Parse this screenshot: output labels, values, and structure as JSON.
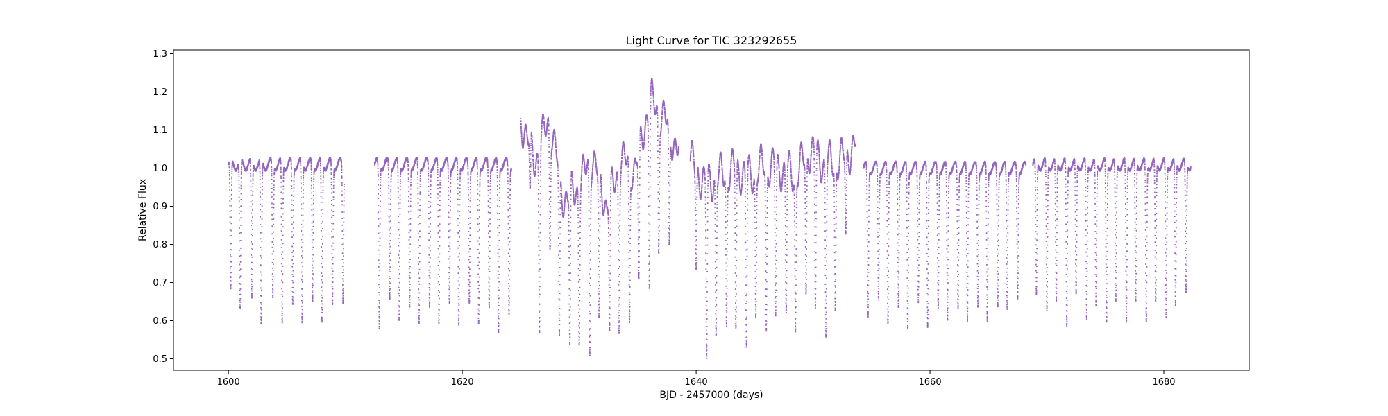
{
  "chart_data": {
    "type": "scatter",
    "title": "Light Curve for TIC 323292655",
    "xlabel": "BJD - 2457000 (days)",
    "ylabel": "Relative Flux",
    "xlim": [
      1595.3,
      1687.3
    ],
    "ylim": [
      0.47,
      1.31
    ],
    "xticks": [
      1600,
      1620,
      1640,
      1660,
      1680
    ],
    "yticks": [
      0.5,
      0.6,
      0.7,
      0.8,
      0.9,
      1.0,
      1.1,
      1.2,
      1.3
    ],
    "xtick_labels": [
      "1600",
      "1620",
      "1640",
      "1660",
      "1680"
    ],
    "ytick_labels": [
      "0.5",
      "0.6",
      "0.7",
      "0.8",
      "0.9",
      "1.0",
      "1.1",
      "1.2",
      "1.3"
    ],
    "grid": false,
    "marker_color": "#9467bd",
    "segments": [
      {
        "t_start": 1600.0,
        "t_end": 1609.9,
        "eclipse_times": [
          1600.2,
          1601.0,
          1602.0,
          1602.8,
          1603.8,
          1604.6,
          1605.5,
          1606.3,
          1607.2,
          1608.0,
          1608.9,
          1609.8
        ],
        "eclipse_minima": [
          0.67,
          0.62,
          0.65,
          0.58,
          0.66,
          0.59,
          0.64,
          0.59,
          0.65,
          0.59,
          0.64,
          0.65
        ],
        "baseline": 1.01,
        "active": false
      },
      {
        "t_start": 1612.5,
        "t_end": 1624.2,
        "eclipse_times": [
          1612.9,
          1613.8,
          1614.6,
          1615.5,
          1616.3,
          1617.2,
          1618.0,
          1618.9,
          1619.7,
          1620.6,
          1621.4,
          1622.3,
          1623.1,
          1624.0
        ],
        "eclipse_minima": [
          0.58,
          0.66,
          0.6,
          0.64,
          0.59,
          0.64,
          0.59,
          0.65,
          0.59,
          0.65,
          0.59,
          0.64,
          0.57,
          0.62
        ],
        "baseline": 1.01,
        "active": false
      },
      {
        "t_start": 1625.0,
        "t_end": 1638.5,
        "eclipse_times": [
          1625.8,
          1626.6,
          1627.5,
          1628.3,
          1629.2,
          1630.0,
          1630.9,
          1631.7,
          1632.6,
          1633.4,
          1634.3,
          1635.1,
          1636.0,
          1636.8,
          1637.7
        ],
        "eclipse_minima": [
          0.85,
          0.55,
          0.7,
          0.54,
          0.58,
          0.62,
          0.51,
          0.6,
          0.65,
          0.6,
          0.58,
          0.64,
          0.53,
          0.65,
          0.67
        ],
        "baseline": 1.0,
        "active": true,
        "peaks": [
          1.21,
          1.1,
          1.21,
          1.0,
          1.03,
          1.11,
          0.98,
          1.1,
          1.08,
          1.26,
          1.21,
          1.12
        ]
      },
      {
        "t_start": 1639.5,
        "t_end": 1653.6,
        "eclipse_times": [
          1640.0,
          1640.9,
          1641.7,
          1642.6,
          1643.4,
          1644.3,
          1645.1,
          1646.0,
          1646.8,
          1647.7,
          1648.5,
          1649.4,
          1650.2,
          1651.1,
          1651.9,
          1652.8
        ],
        "eclipse_minima": [
          0.76,
          0.56,
          0.61,
          0.62,
          0.6,
          0.57,
          0.64,
          0.58,
          0.63,
          0.66,
          0.61,
          0.65,
          0.62,
          0.58,
          0.63,
          0.8
        ],
        "baseline": 1.02,
        "active": true,
        "peaks": [
          1.1,
          1.04,
          1.06,
          1.08,
          1.06,
          1.09,
          1.08,
          1.06,
          1.13,
          1.09,
          1.1,
          1.14
        ]
      },
      {
        "t_start": 1654.3,
        "t_end": 1668.2,
        "eclipse_times": [
          1654.7,
          1655.6,
          1656.4,
          1657.3,
          1658.1,
          1659.0,
          1659.8,
          1660.7,
          1661.5,
          1662.4,
          1663.2,
          1664.1,
          1664.9,
          1665.8,
          1666.6,
          1667.5
        ],
        "eclipse_minima": [
          0.61,
          0.66,
          0.59,
          0.64,
          0.58,
          0.65,
          0.58,
          0.64,
          0.6,
          0.64,
          0.6,
          0.64,
          0.6,
          0.64,
          0.63,
          0.66
        ],
        "baseline": 1.0,
        "active": false
      },
      {
        "t_start": 1668.8,
        "t_end": 1682.3,
        "eclipse_times": [
          1669.1,
          1670.0,
          1670.8,
          1671.7,
          1672.5,
          1673.4,
          1674.2,
          1675.1,
          1675.9,
          1676.8,
          1677.6,
          1678.5,
          1679.3,
          1680.2,
          1681.0,
          1681.9
        ],
        "eclipse_minima": [
          0.66,
          0.62,
          0.64,
          0.58,
          0.66,
          0.6,
          0.63,
          0.59,
          0.64,
          0.59,
          0.64,
          0.59,
          0.64,
          0.6,
          0.63,
          0.67
        ],
        "baseline": 1.01,
        "active": false
      }
    ]
  }
}
